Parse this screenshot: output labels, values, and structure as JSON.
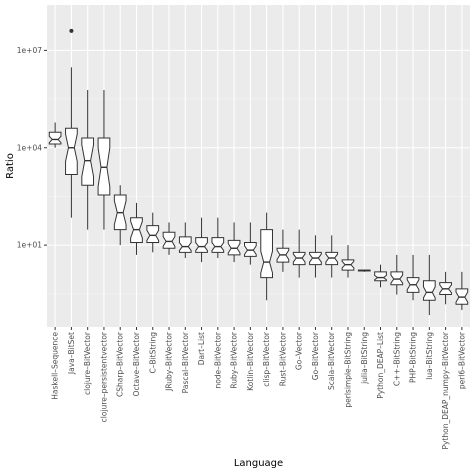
{
  "chart_data": {
    "type": "boxplot",
    "xlabel": "Language",
    "ylabel": "Ratio",
    "y_scale": "log10",
    "ylim": [
      0.03,
      250000000
    ],
    "y_ticks": [
      {
        "value": 10,
        "label": "1e+01"
      },
      {
        "value": 10000,
        "label": "1e+04"
      },
      {
        "value": 10000000,
        "label": "1e+07"
      }
    ],
    "grid": true,
    "background": "#ebebeb",
    "box_fill": "#ffffff",
    "box_stroke": "#333333",
    "notched": true,
    "categories": [
      "Haskell–Sequence",
      "Java–BitSet",
      "clojure–BitVector",
      "clojure–persistentvector",
      "CSharp–BitVector",
      "Octave–BitVector",
      "C–BitString",
      "JRuby–BitVector",
      "Pascal–BitVector",
      "Dart–List",
      "node–BitVector",
      "Ruby–BitVector",
      "Kotlin–BitVector",
      "clisp–BitVector",
      "Rust–BitVector",
      "Go–Vector",
      "Go–BitVector",
      "Scala–BitVector",
      "perlsimple–BitString",
      "julia–BitString",
      "Python_DEAP–List",
      "C++–BitString",
      "PHP–BitString",
      "lua–BitString",
      "Python_DEAP_numpy–BitVector",
      "perl6–BitVector"
    ],
    "boxes": [
      {
        "whisker_low": 10000,
        "q1": 13000,
        "median": 18000,
        "q3": 30000,
        "whisker_high": 60000,
        "outliers": []
      },
      {
        "whisker_low": 70,
        "q1": 1500,
        "median": 10000,
        "q3": 40000,
        "whisker_high": 3000000,
        "outliers": [
          40000000
        ]
      },
      {
        "whisker_low": 30,
        "q1": 700,
        "median": 4000,
        "q3": 20000,
        "whisker_high": 600000,
        "outliers": []
      },
      {
        "whisker_low": 30,
        "q1": 350,
        "median": 2500,
        "q3": 20000,
        "whisker_high": 600000,
        "outliers": []
      },
      {
        "whisker_low": 10,
        "q1": 30,
        "median": 100,
        "q3": 350,
        "whisker_high": 700,
        "outliers": []
      },
      {
        "whisker_low": 5,
        "q1": 12,
        "median": 30,
        "q3": 70,
        "whisker_high": 200,
        "outliers": []
      },
      {
        "whisker_low": 6,
        "q1": 12,
        "median": 20,
        "q3": 40,
        "whisker_high": 100,
        "outliers": []
      },
      {
        "whisker_low": 5,
        "q1": 8,
        "median": 13,
        "q3": 25,
        "whisker_high": 50,
        "outliers": []
      },
      {
        "whisker_low": 4,
        "q1": 6,
        "median": 9,
        "q3": 18,
        "whisker_high": 50,
        "outliers": []
      },
      {
        "whisker_low": 3,
        "q1": 6,
        "median": 9,
        "q3": 17,
        "whisker_high": 70,
        "outliers": []
      },
      {
        "whisker_low": 4,
        "q1": 6,
        "median": 9,
        "q3": 17,
        "whisker_high": 70,
        "outliers": []
      },
      {
        "whisker_low": 3,
        "q1": 5,
        "median": 8,
        "q3": 14,
        "whisker_high": 50,
        "outliers": []
      },
      {
        "whisker_low": 2.5,
        "q1": 4.5,
        "median": 7,
        "q3": 12,
        "whisker_high": 50,
        "outliers": []
      },
      {
        "whisker_low": 0.2,
        "q1": 1,
        "median": 3,
        "q3": 30,
        "whisker_high": 100,
        "outliers": []
      },
      {
        "whisker_low": 1.5,
        "q1": 3,
        "median": 5,
        "q3": 8,
        "whisker_high": 30,
        "outliers": []
      },
      {
        "whisker_low": 1,
        "q1": 2.5,
        "median": 4,
        "q3": 6,
        "whisker_high": 30,
        "outliers": []
      },
      {
        "whisker_low": 1,
        "q1": 2.5,
        "median": 4,
        "q3": 6,
        "whisker_high": 20,
        "outliers": []
      },
      {
        "whisker_low": 1,
        "q1": 2.5,
        "median": 4,
        "q3": 6,
        "whisker_high": 20,
        "outliers": []
      },
      {
        "whisker_low": 1,
        "q1": 1.7,
        "median": 2.5,
        "q3": 3.5,
        "whisker_high": 10,
        "outliers": []
      },
      {
        "whisker_low": 1.5,
        "q1": 1.6,
        "median": 1.65,
        "q3": 1.7,
        "whisker_high": 1.75,
        "outliers": []
      },
      {
        "whisker_low": 0.5,
        "q1": 0.8,
        "median": 1,
        "q3": 1.5,
        "whisker_high": 2.5,
        "outliers": []
      },
      {
        "whisker_low": 0.3,
        "q1": 0.6,
        "median": 0.9,
        "q3": 1.5,
        "whisker_high": 5,
        "outliers": []
      },
      {
        "whisker_low": 0.2,
        "q1": 0.35,
        "median": 0.6,
        "q3": 1,
        "whisker_high": 5,
        "outliers": []
      },
      {
        "whisker_low": 0.07,
        "q1": 0.2,
        "median": 0.35,
        "q3": 0.8,
        "whisker_high": 5,
        "outliers": []
      },
      {
        "whisker_low": 0.15,
        "q1": 0.3,
        "median": 0.45,
        "q3": 0.7,
        "whisker_high": 1.5,
        "outliers": []
      },
      {
        "whisker_low": 0.1,
        "q1": 0.15,
        "median": 0.25,
        "q3": 0.45,
        "whisker_high": 1.5,
        "outliers": []
      }
    ]
  }
}
